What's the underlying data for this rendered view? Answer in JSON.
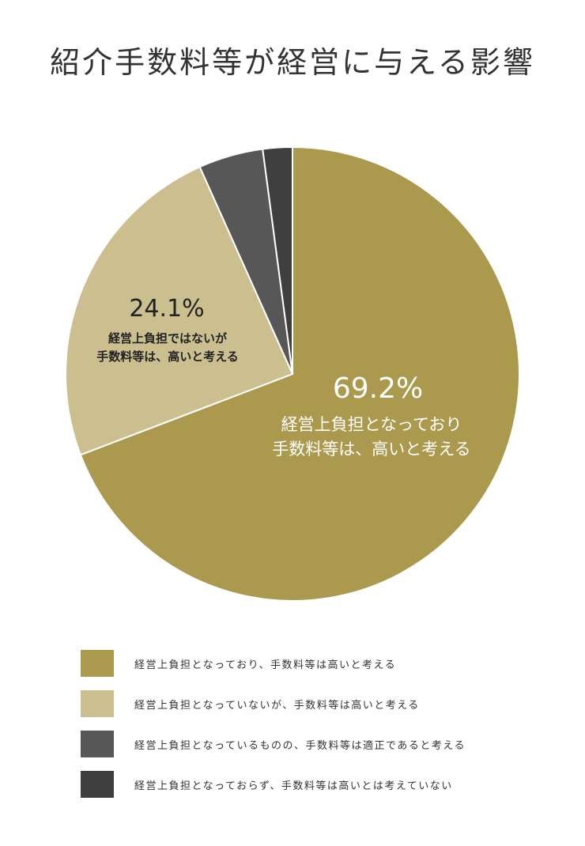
{
  "title": "紹介手数料等が経営に与える影響",
  "colors": {
    "slice1": "#ab994e",
    "slice2": "#cbbf90",
    "slice3": "#575757",
    "slice4": "#3f3f3f",
    "label_light": "#ffffff",
    "label_dark": "#222222"
  },
  "chart_data": {
    "type": "pie",
    "title": "紹介手数料等が経営に与える影響",
    "start": "12-o'clock",
    "direction": "clockwise",
    "slices": [
      {
        "name": "経営上負担となっており、手数料等は高いと考える",
        "value": 69.2,
        "percent_label": "69.2%",
        "label_line1": "経営上負担となっており",
        "label_line2": "手数料等は、高いと考える"
      },
      {
        "name": "経営上負担となっていないが、手数料等は高いと考える",
        "value": 24.1,
        "percent_label": "24.1%",
        "label_line1": "経営上負担ではないが",
        "label_line2": "手数料等は、高いと考える"
      },
      {
        "name": "経営上負担となっているものの、手数料等は適正であると考える",
        "value": 4.6
      },
      {
        "name": "経営上負担となっておらず、手数料等は高いとは考えていない",
        "value": 2.1
      }
    ],
    "legend_position": "bottom"
  },
  "legend": [
    "経営上負担となっており、手数料等は高いと考える",
    "経営上負担となっていないが、手数料等は高いと考える",
    "経営上負担となっているものの、手数料等は適正であると考える",
    "経営上負担となっておらず、手数料等は高いとは考えていない"
  ]
}
